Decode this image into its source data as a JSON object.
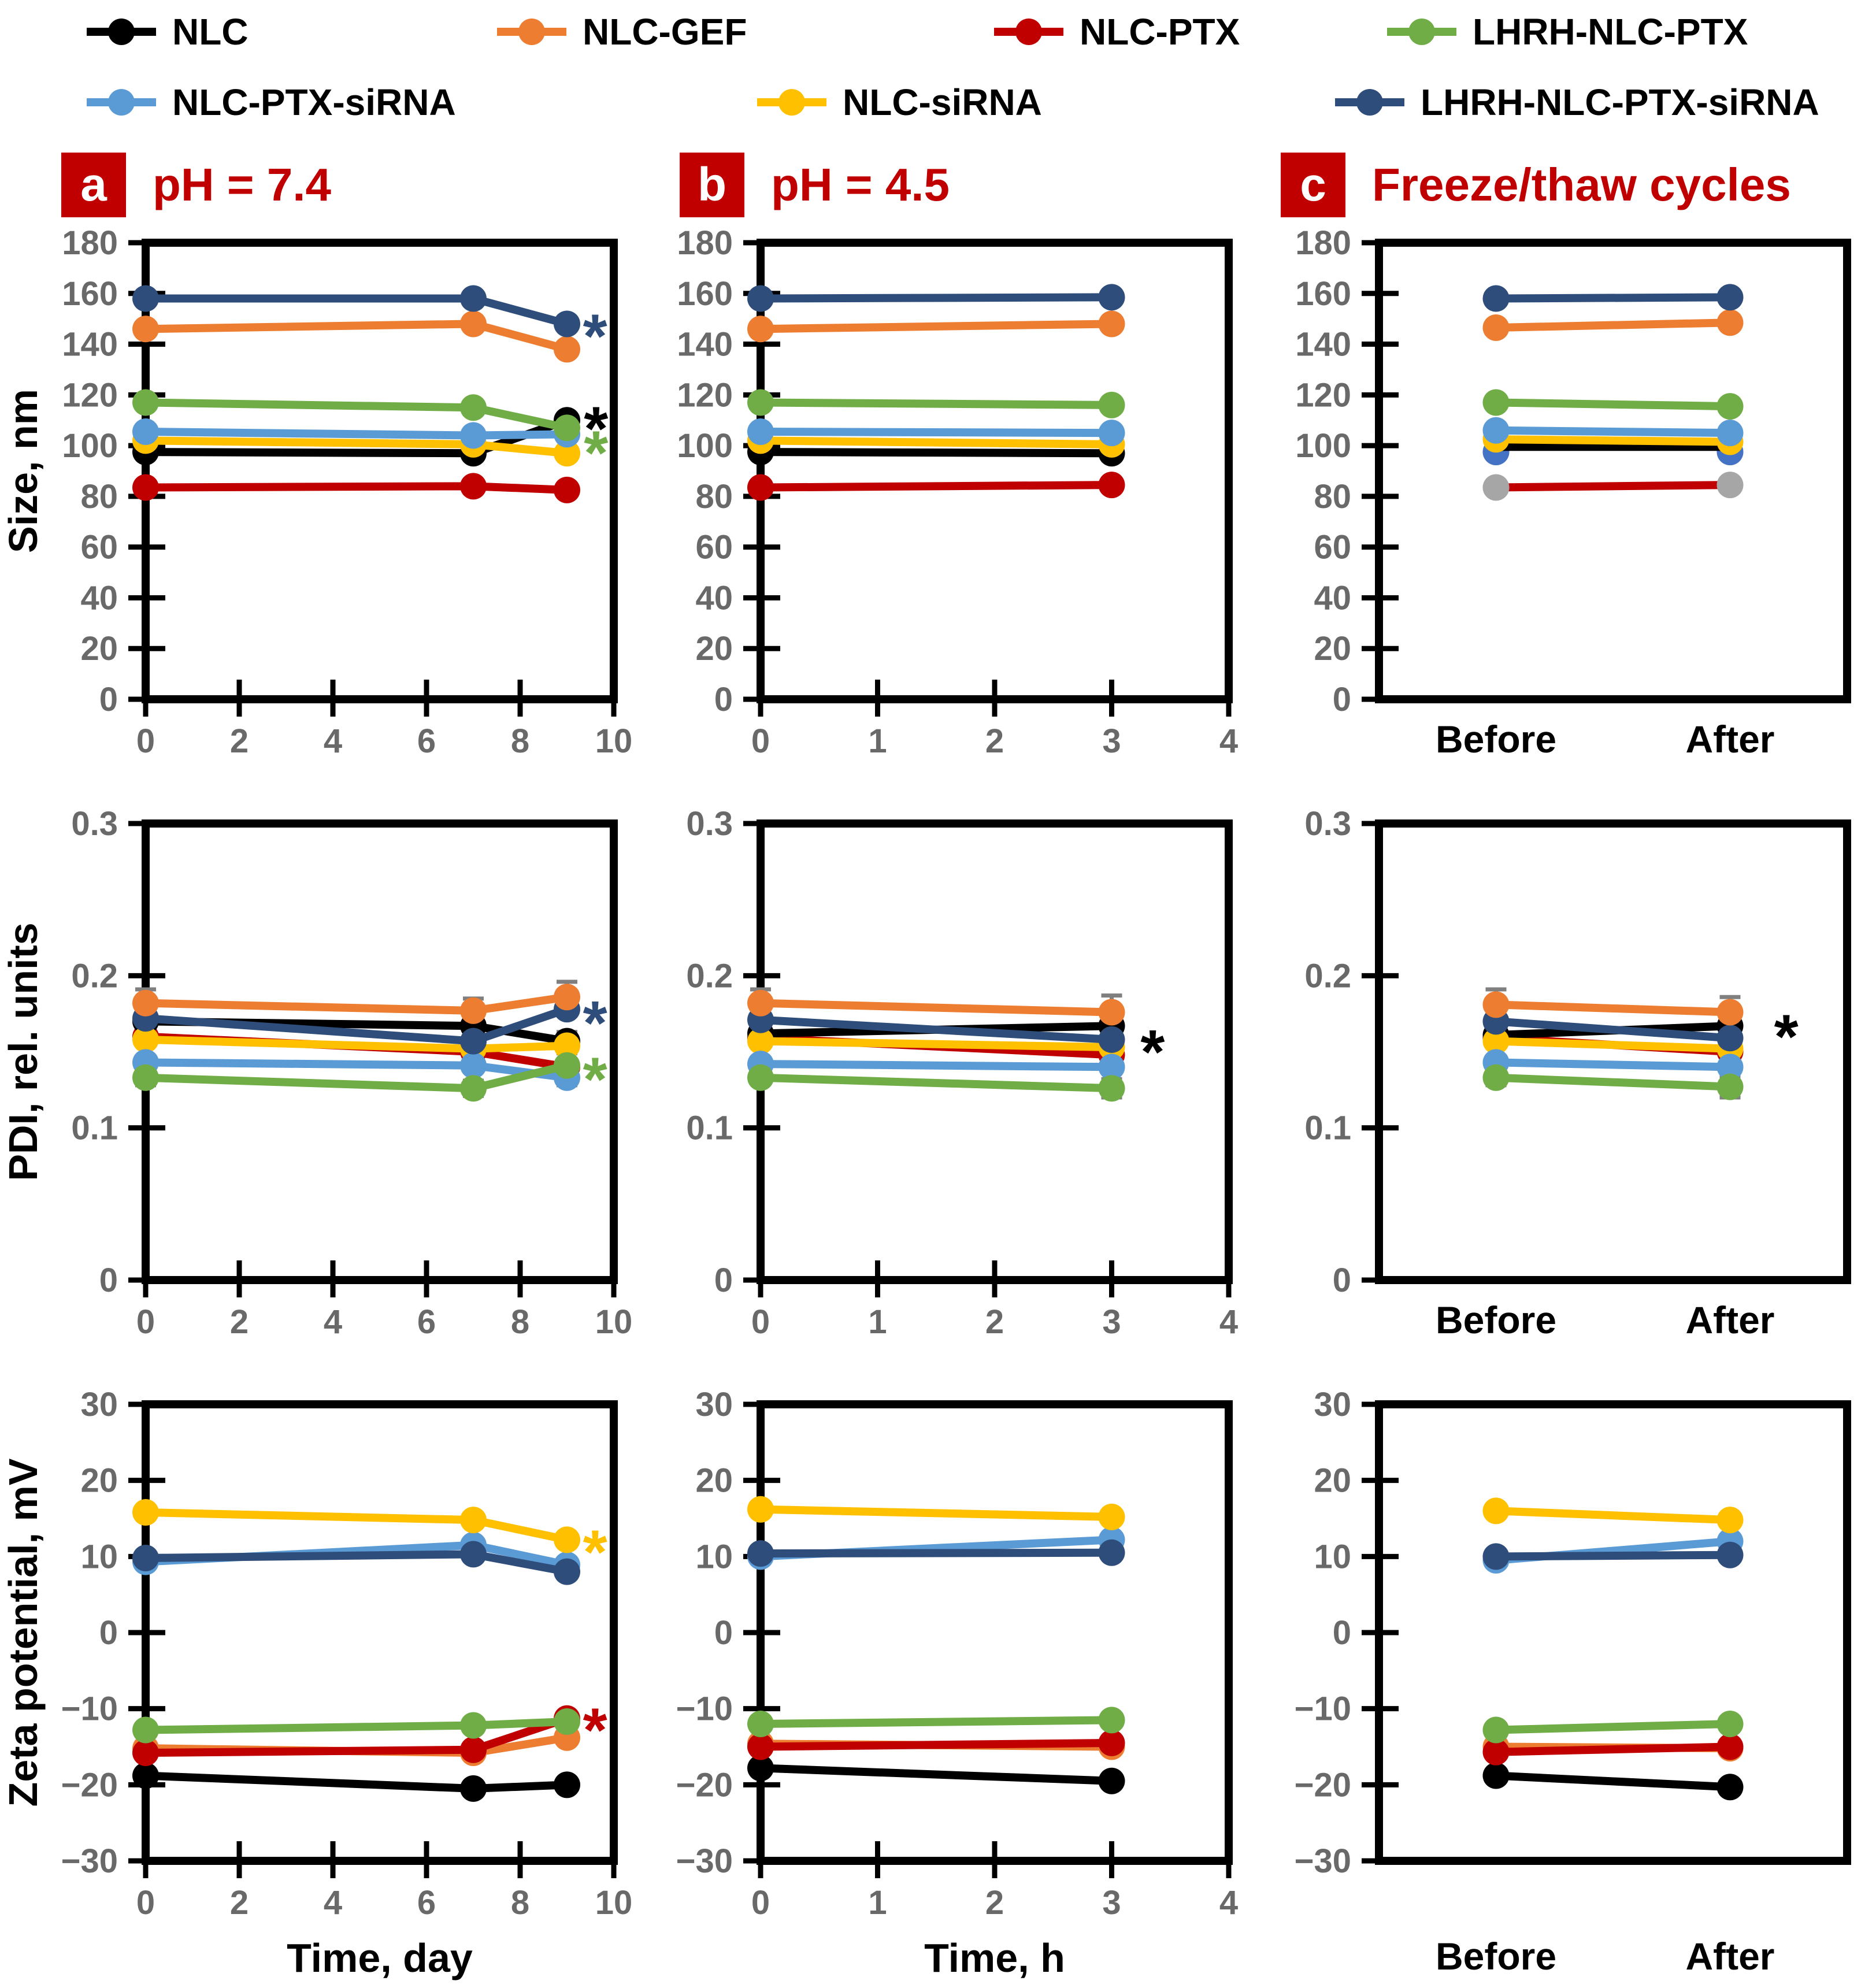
{
  "accent": "#C00000",
  "palette": {
    "NLC": "#000000",
    "NLC-GEF": "#ED7D31",
    "NLC-PTX": "#C00000",
    "LHRH-NLC-PTX": "#70AD47",
    "NLC-PTX-siRNA": "#5B9BD5",
    "NLC-siRNA": "#FFC000",
    "LHRH-NLC-PTX-siRNA": "#2E4D7B",
    "extra-marker-blue": "#4472C4",
    "extra-marker-gray": "#A6A6A6"
  },
  "legend": {
    "rows": [
      [
        {
          "key": "NLC",
          "label": "NLC"
        },
        {
          "key": "NLC-GEF",
          "label": "NLC-GEF"
        },
        {
          "key": "NLC-PTX",
          "label": "NLC-PTX"
        },
        {
          "key": "LHRH-NLC-PTX",
          "label": "LHRH-NLC-PTX"
        }
      ],
      [
        {
          "key": "NLC-PTX-siRNA",
          "label": "NLC-PTX-siRNA"
        },
        {
          "key": "NLC-siRNA",
          "label": "NLC-siRNA"
        },
        {
          "key": "LHRH-NLC-PTX-siRNA",
          "label": "LHRH-NLC-PTX-siRNA"
        }
      ]
    ]
  },
  "panels": [
    {
      "letter": "a",
      "title": "pH = 7.4"
    },
    {
      "letter": "b",
      "title": "pH = 4.5"
    },
    {
      "letter": "c",
      "title": "Freeze/thaw cycles"
    }
  ],
  "chart_data": [
    {
      "id": "size-a",
      "rowkey": "size",
      "col": "a",
      "type": "line",
      "ylabel": "Size, nm",
      "ylim": [
        0,
        180
      ],
      "yticks": {
        "v": [
          0,
          20,
          40,
          60,
          80,
          100,
          120,
          140,
          160,
          180
        ],
        "labels": [
          "0",
          "20",
          "40",
          "60",
          "80",
          "100",
          "120",
          "140",
          "160",
          "180"
        ]
      },
      "xlim": [
        0,
        10
      ],
      "xticks": {
        "v": [
          0,
          2,
          4,
          6,
          8,
          10
        ],
        "labels": [
          "0",
          "2",
          "4",
          "6",
          "8",
          "10"
        ]
      },
      "x": [
        0,
        7,
        9
      ],
      "series": [
        {
          "key": "NLC-PTX",
          "values": [
            83.5,
            84,
            82.5
          ]
        },
        {
          "key": "NLC",
          "values": [
            97.5,
            97,
            110
          ]
        },
        {
          "key": "NLC-siRNA",
          "values": [
            102,
            100.5,
            97
          ]
        },
        {
          "key": "NLC-PTX-siRNA",
          "values": [
            105.5,
            104,
            104.5
          ]
        },
        {
          "key": "LHRH-NLC-PTX",
          "values": [
            117,
            115,
            107
          ]
        },
        {
          "key": "NLC-GEF",
          "values": [
            146,
            148,
            138
          ]
        },
        {
          "key": "LHRH-NLC-PTX-siRNA",
          "values": [
            158,
            158,
            148
          ]
        }
      ],
      "annotations": [
        {
          "char": "*",
          "color": "#2E4D7B",
          "x": 9.6,
          "y": 148
        },
        {
          "char": "*",
          "color": "#000000",
          "x": 9.62,
          "y": 111.5
        },
        {
          "char": "*",
          "color": "#70AD47",
          "x": 9.62,
          "y": 102
        }
      ]
    },
    {
      "id": "size-b",
      "rowkey": "size",
      "col": "b",
      "type": "line",
      "ylim": [
        0,
        180
      ],
      "yticks": {
        "v": [
          0,
          20,
          40,
          60,
          80,
          100,
          120,
          140,
          160,
          180
        ],
        "labels": [
          "0",
          "20",
          "40",
          "60",
          "80",
          "100",
          "120",
          "140",
          "160",
          "180"
        ]
      },
      "xlim": [
        0,
        4
      ],
      "xticks": {
        "v": [
          0,
          1,
          2,
          3,
          4
        ],
        "labels": [
          "0",
          "1",
          "2",
          "3",
          "4"
        ]
      },
      "x": [
        0,
        3
      ],
      "series": [
        {
          "key": "NLC-PTX",
          "values": [
            83.5,
            84.5
          ]
        },
        {
          "key": "NLC",
          "values": [
            97.5,
            97
          ]
        },
        {
          "key": "NLC-siRNA",
          "values": [
            102,
            100.5
          ]
        },
        {
          "key": "NLC-PTX-siRNA",
          "values": [
            105.5,
            105
          ]
        },
        {
          "key": "LHRH-NLC-PTX",
          "values": [
            117,
            116
          ]
        },
        {
          "key": "NLC-GEF",
          "values": [
            146,
            148
          ]
        },
        {
          "key": "LHRH-NLC-PTX-siRNA",
          "values": [
            158,
            158.5
          ]
        }
      ],
      "annotations": []
    },
    {
      "id": "size-c",
      "rowkey": "size",
      "col": "c",
      "type": "line",
      "ylim": [
        0,
        180
      ],
      "yticks": {
        "v": [
          0,
          20,
          40,
          60,
          80,
          100,
          120,
          140,
          160,
          180
        ],
        "labels": [
          "0",
          "20",
          "40",
          "60",
          "80",
          "100",
          "120",
          "140",
          "160",
          "180"
        ]
      },
      "categories": [
        "Before",
        "After"
      ],
      "series": [
        {
          "key": "extra-marker-blue",
          "values": [
            97.5,
            97.5
          ],
          "marker_only": true
        },
        {
          "key": "NLC-PTX",
          "values": [
            83.5,
            84.5
          ],
          "marker_color": "#A6A6A6"
        },
        {
          "key": "NLC",
          "values": [
            99.5,
            99.5
          ],
          "marker": "none"
        },
        {
          "key": "NLC-siRNA",
          "values": [
            102.5,
            101.5
          ]
        },
        {
          "key": "NLC-PTX-siRNA",
          "values": [
            106,
            105
          ]
        },
        {
          "key": "LHRH-NLC-PTX",
          "values": [
            117,
            115.5
          ]
        },
        {
          "key": "NLC-GEF",
          "values": [
            146.5,
            148.5
          ]
        },
        {
          "key": "LHRH-NLC-PTX-siRNA",
          "values": [
            158,
            158.5
          ]
        }
      ],
      "annotations": []
    },
    {
      "id": "pdi-a",
      "rowkey": "pdi",
      "col": "a",
      "type": "line",
      "ylabel": "PDI, rel. units",
      "ylim": [
        0,
        0.3
      ],
      "yticks": {
        "v": [
          0,
          0.1,
          0.2,
          0.3
        ],
        "labels": [
          "0",
          "0.1",
          "0.2",
          "0.3"
        ]
      },
      "xlim": [
        0,
        10
      ],
      "xticks": {
        "v": [
          0,
          2,
          4,
          6,
          8,
          10
        ],
        "labels": [
          "0",
          "2",
          "4",
          "6",
          "8",
          "10"
        ]
      },
      "x": [
        0,
        7,
        9
      ],
      "series": [
        {
          "key": "NLC-PTX",
          "values": [
            0.16,
            0.15,
            0.14
          ]
        },
        {
          "key": "NLC",
          "values": [
            0.17,
            0.167,
            0.157
          ],
          "err": [
            null,
            null,
            0.006
          ]
        },
        {
          "key": "NLC-siRNA",
          "values": [
            0.158,
            0.152,
            0.154
          ],
          "err": [
            null,
            null,
            0.005
          ]
        },
        {
          "key": "NLC-PTX-siRNA",
          "values": [
            0.143,
            0.141,
            0.133
          ],
          "err": [
            0.004,
            null,
            0.005
          ]
        },
        {
          "key": "LHRH-NLC-PTX",
          "values": [
            0.133,
            0.126,
            0.141
          ],
          "err": [
            0.005,
            0.005,
            null
          ]
        },
        {
          "key": "LHRH-NLC-PTX-siRNA",
          "values": [
            0.172,
            0.157,
            0.178
          ]
        },
        {
          "key": "NLC-GEF",
          "values": [
            0.182,
            0.177,
            0.186
          ],
          "err": [
            0.009,
            0.008,
            0.01
          ]
        }
      ],
      "annotations": [
        {
          "char": "*",
          "color": "#2E4D7B",
          "x": 9.6,
          "y": 0.177
        },
        {
          "char": "*",
          "color": "#70AD47",
          "x": 9.6,
          "y": 0.14
        }
      ]
    },
    {
      "id": "pdi-b",
      "rowkey": "pdi",
      "col": "b",
      "type": "line",
      "ylim": [
        0,
        0.3
      ],
      "yticks": {
        "v": [
          0,
          0.1,
          0.2,
          0.3
        ],
        "labels": [
          "0",
          "0.1",
          "0.2",
          "0.3"
        ]
      },
      "xlim": [
        0,
        4
      ],
      "xticks": {
        "v": [
          0,
          1,
          2,
          3,
          4
        ],
        "labels": [
          "0",
          "1",
          "2",
          "3",
          "4"
        ]
      },
      "x": [
        0,
        3
      ],
      "series": [
        {
          "key": "NLC-PTX",
          "values": [
            0.159,
            0.148
          ]
        },
        {
          "key": "NLC",
          "values": [
            0.162,
            0.167
          ]
        },
        {
          "key": "NLC-siRNA",
          "values": [
            0.157,
            0.153
          ]
        },
        {
          "key": "NLC-PTX-siRNA",
          "values": [
            0.142,
            0.14
          ]
        },
        {
          "key": "LHRH-NLC-PTX",
          "values": [
            0.133,
            0.126
          ],
          "err": [
            null,
            0.006
          ]
        },
        {
          "key": "LHRH-NLC-PTX-siRNA",
          "values": [
            0.171,
            0.158
          ]
        },
        {
          "key": "NLC-GEF",
          "values": [
            0.182,
            0.176
          ],
          "err": [
            0.009,
            0.011
          ]
        }
      ],
      "annotations": [
        {
          "char": "*",
          "color": "#000000",
          "x": 3.35,
          "y": 0.158
        }
      ]
    },
    {
      "id": "pdi-c",
      "rowkey": "pdi",
      "col": "c",
      "type": "line",
      "ylim": [
        0,
        0.3
      ],
      "yticks": {
        "v": [
          0,
          0.1,
          0.2,
          0.3
        ],
        "labels": [
          "0",
          "0.1",
          "0.2",
          "0.3"
        ]
      },
      "categories": [
        "Before",
        "After"
      ],
      "series": [
        {
          "key": "NLC-PTX",
          "values": [
            0.159,
            0.15
          ]
        },
        {
          "key": "NLC",
          "values": [
            0.161,
            0.167
          ]
        },
        {
          "key": "NLC-siRNA",
          "values": [
            0.157,
            0.152
          ]
        },
        {
          "key": "NLC-PTX-siRNA",
          "values": [
            0.143,
            0.14
          ],
          "err": [
            null,
            0.004
          ]
        },
        {
          "key": "LHRH-NLC-PTX",
          "values": [
            0.133,
            0.127
          ],
          "err": [
            0.005,
            0.007
          ]
        },
        {
          "key": "LHRH-NLC-PTX-siRNA",
          "values": [
            0.17,
            0.159
          ]
        },
        {
          "key": "NLC-GEF",
          "values": [
            0.181,
            0.176
          ],
          "err": [
            0.01,
            0.01
          ]
        }
      ],
      "annotations": [
        {
          "char": "*",
          "color": "#000000",
          "x_frac": 0.87,
          "y": 0.168
        }
      ]
    },
    {
      "id": "zeta-a",
      "rowkey": "zeta",
      "col": "a",
      "type": "line",
      "ylabel": "Zeta potential, mV",
      "xlabel": "Time, day",
      "ylim": [
        -30,
        30
      ],
      "yticks": {
        "v": [
          -30,
          -20,
          -10,
          0,
          10,
          20,
          30
        ],
        "labels": [
          "−30",
          "−20",
          "−10",
          "0",
          "10",
          "20",
          "30"
        ]
      },
      "xlim": [
        0,
        10
      ],
      "xticks": {
        "v": [
          0,
          2,
          4,
          6,
          8,
          10
        ],
        "labels": [
          "0",
          "2",
          "4",
          "6",
          "8",
          "10"
        ]
      },
      "x": [
        0,
        7,
        9
      ],
      "series": [
        {
          "key": "NLC",
          "values": [
            -18.8,
            -20.5,
            -20.0
          ]
        },
        {
          "key": "NLC-GEF",
          "values": [
            -15.2,
            -15.8,
            -13.8
          ]
        },
        {
          "key": "NLC-PTX",
          "values": [
            -15.8,
            -15.4,
            -11.3
          ]
        },
        {
          "key": "LHRH-NLC-PTX",
          "values": [
            -12.8,
            -12.2,
            -11.7
          ]
        },
        {
          "key": "NLC-PTX-siRNA",
          "values": [
            9.3,
            11.5,
            8.9
          ]
        },
        {
          "key": "LHRH-NLC-PTX-siRNA",
          "values": [
            9.8,
            10.3,
            8.0
          ]
        },
        {
          "key": "NLC-siRNA",
          "values": [
            15.8,
            14.8,
            12.2
          ]
        }
      ],
      "annotations": [
        {
          "char": "*",
          "color": "#FFC000",
          "x": 9.6,
          "y": 12.2
        },
        {
          "char": "*",
          "color": "#C00000",
          "x": 9.6,
          "y": -11.2
        }
      ]
    },
    {
      "id": "zeta-b",
      "rowkey": "zeta",
      "col": "b",
      "type": "line",
      "xlabel": "Time, h",
      "ylim": [
        -30,
        30
      ],
      "yticks": {
        "v": [
          -30,
          -20,
          -10,
          0,
          10,
          20,
          30
        ],
        "labels": [
          "−30",
          "−20",
          "−10",
          "0",
          "10",
          "20",
          "30"
        ]
      },
      "xlim": [
        0,
        4
      ],
      "xticks": {
        "v": [
          0,
          1,
          2,
          3,
          4
        ],
        "labels": [
          "0",
          "1",
          "2",
          "3",
          "4"
        ]
      },
      "x": [
        0,
        3
      ],
      "series": [
        {
          "key": "NLC",
          "values": [
            -17.8,
            -19.5
          ]
        },
        {
          "key": "NLC-GEF",
          "values": [
            -14.6,
            -15.0
          ]
        },
        {
          "key": "NLC-PTX",
          "values": [
            -15.0,
            -14.5
          ]
        },
        {
          "key": "LHRH-NLC-PTX",
          "values": [
            -12.0,
            -11.5
          ]
        },
        {
          "key": "NLC-PTX-siRNA",
          "values": [
            10.0,
            12.2
          ]
        },
        {
          "key": "LHRH-NLC-PTX-siRNA",
          "values": [
            10.4,
            10.5
          ]
        },
        {
          "key": "NLC-siRNA",
          "values": [
            16.2,
            15.2
          ]
        }
      ],
      "annotations": []
    },
    {
      "id": "zeta-c",
      "rowkey": "zeta",
      "col": "c",
      "type": "line",
      "ylim": [
        -30,
        30
      ],
      "yticks": {
        "v": [
          -30,
          -20,
          -10,
          0,
          10,
          20,
          30
        ],
        "labels": [
          "−30",
          "−20",
          "−10",
          "0",
          "10",
          "20",
          "30"
        ]
      },
      "categories": [
        "Before",
        "After"
      ],
      "cat_label_low": true,
      "series": [
        {
          "key": "NLC",
          "values": [
            -18.8,
            -20.3
          ]
        },
        {
          "key": "NLC-GEF",
          "values": [
            -15.0,
            -15.2
          ]
        },
        {
          "key": "NLC-PTX",
          "values": [
            -15.7,
            -15.0
          ]
        },
        {
          "key": "LHRH-NLC-PTX",
          "values": [
            -12.8,
            -12.0
          ]
        },
        {
          "key": "NLC-PTX-siRNA",
          "values": [
            9.5,
            12.0
          ]
        },
        {
          "key": "LHRH-NLC-PTX-siRNA",
          "values": [
            10.0,
            10.2
          ]
        },
        {
          "key": "NLC-siRNA",
          "values": [
            16.0,
            14.8
          ]
        }
      ],
      "annotations": []
    }
  ]
}
